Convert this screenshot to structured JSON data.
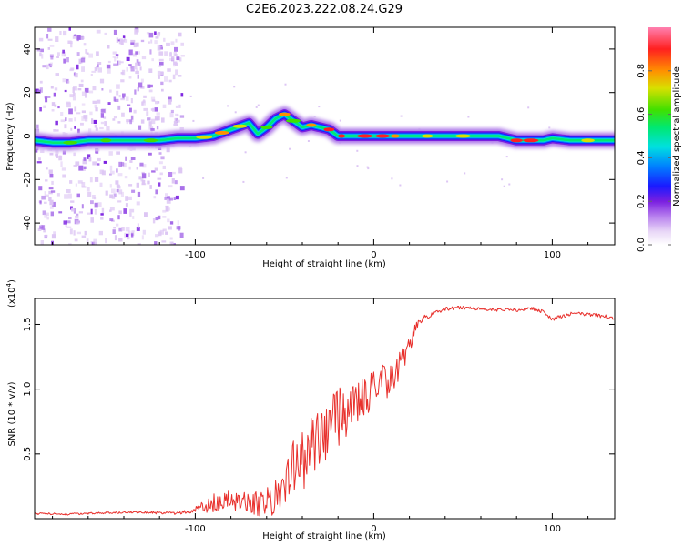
{
  "title": "C2E6.2023.222.08.24.G29",
  "colors": {
    "snr_line": "#e8302c",
    "axes": "#000000",
    "colormap": [
      "#ffffff",
      "#ddc6f4",
      "#a56ae8",
      "#7a1fe0",
      "#1a1aff",
      "#0080ff",
      "#00e0e0",
      "#00e870",
      "#40e000",
      "#d8e000",
      "#ff9000",
      "#ff2020",
      "#ff80b0"
    ]
  },
  "chart_data": [
    {
      "type": "heatmap",
      "name": "spectrogram",
      "xlabel": "Height of straight line (km)",
      "ylabel": "Frequency (Hz)",
      "xlim": [
        -190,
        135
      ],
      "ylim": [
        -50,
        50
      ],
      "xticks": [
        -100,
        0,
        100
      ],
      "xtick_labels": [
        "-100",
        "0",
        "100"
      ],
      "yticks": [
        -40,
        -20,
        0,
        20,
        40
      ],
      "ytick_labels": [
        "-40",
        "-20",
        "0",
        "20",
        "40"
      ],
      "ridge_freq": {
        "x": [
          -190,
          -180,
          -170,
          -160,
          -150,
          -140,
          -130,
          -120,
          -110,
          -100,
          -90,
          -80,
          -70,
          -65,
          -60,
          -55,
          -50,
          -45,
          -40,
          -35,
          -30,
          -25,
          -20,
          -10,
          0,
          10,
          20,
          30,
          40,
          50,
          60,
          70,
          80,
          90,
          95,
          100,
          110,
          120,
          130,
          135
        ],
        "y": [
          -2,
          -3,
          -3,
          -2,
          -2,
          -2,
          -2,
          -2,
          -1,
          -1,
          0,
          3,
          6,
          1,
          4,
          8,
          10,
          7,
          4,
          5,
          4,
          3,
          0,
          0,
          0,
          0,
          0,
          0,
          0,
          0,
          0,
          0,
          -2,
          -2,
          -2,
          -1,
          -2,
          -2,
          -2,
          -2
        ]
      },
      "colorbar": {
        "label": "Normalized spectral amplitude",
        "range": [
          0,
          1
        ],
        "ticks": [
          0.0,
          0.2,
          0.4,
          0.6,
          0.8
        ],
        "tick_labels": [
          "0.0",
          "0.2",
          "0.4",
          "0.6",
          "0.8"
        ]
      }
    },
    {
      "type": "line",
      "name": "snr",
      "xlabel": "Height of straight line (km)",
      "ylabel": "SNR (10 * v/v)",
      "scale_label": "(x10",
      "scale_exp": "4",
      "scale_close": ")",
      "xlim": [
        -190,
        135
      ],
      "ylim": [
        0,
        17000
      ],
      "xticks": [
        -100,
        0,
        100
      ],
      "xtick_labels": [
        "-100",
        "0",
        "100"
      ],
      "yticks": [
        5000,
        10000,
        15000
      ],
      "ytick_labels": [
        "0.5",
        "1.0",
        "1.5"
      ],
      "series": [
        {
          "name": "SNR",
          "x": [
            -190,
            -170,
            -150,
            -130,
            -110,
            -100,
            -90,
            -80,
            -70,
            -60,
            -50,
            -45,
            -40,
            -35,
            -30,
            -25,
            -20,
            -15,
            -10,
            -5,
            0,
            5,
            10,
            15,
            20,
            25,
            30,
            40,
            50,
            60,
            70,
            80,
            90,
            95,
            100,
            105,
            110,
            120,
            130,
            135
          ],
          "y": [
            400,
            350,
            450,
            500,
            400,
            700,
            1200,
            1500,
            1000,
            1200,
            2800,
            3800,
            4500,
            5500,
            6300,
            7300,
            7800,
            8400,
            9000,
            9400,
            10000,
            10500,
            11000,
            11800,
            13500,
            15200,
            15600,
            16200,
            16300,
            16200,
            16100,
            16100,
            16200,
            16000,
            15400,
            15600,
            15800,
            15800,
            15600,
            15500
          ],
          "amp": [
            80,
            80,
            80,
            80,
            120,
            250,
            700,
            1000,
            900,
            1200,
            2000,
            2200,
            2400,
            2400,
            2500,
            2400,
            2200,
            2100,
            2000,
            1800,
            1600,
            1500,
            1400,
            1200,
            700,
            350,
            200,
            150,
            120,
            120,
            120,
            120,
            150,
            150,
            150,
            150,
            150,
            150,
            150,
            150
          ]
        }
      ]
    }
  ]
}
